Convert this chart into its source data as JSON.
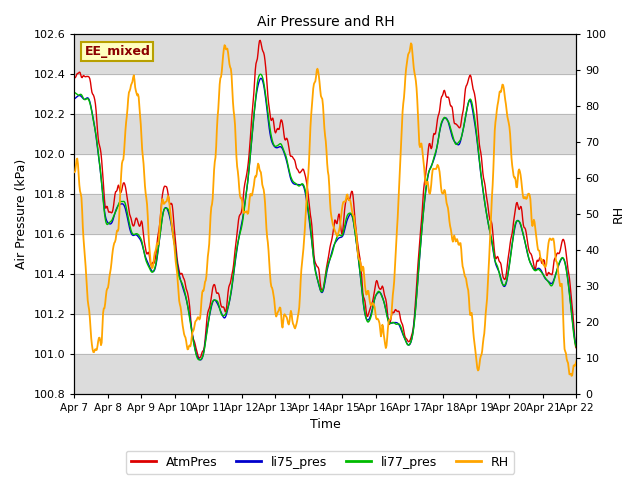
{
  "title": "Air Pressure and RH",
  "xlabel": "Time",
  "ylabel_left": "Air Pressure (kPa)",
  "ylabel_right": "RH",
  "ylim_left": [
    100.8,
    102.6
  ],
  "ylim_right": [
    0,
    100
  ],
  "yticks_left": [
    100.8,
    101.0,
    101.2,
    101.4,
    101.6,
    101.8,
    102.0,
    102.2,
    102.4,
    102.6
  ],
  "yticks_right": [
    0,
    10,
    20,
    30,
    40,
    50,
    60,
    70,
    80,
    90,
    100
  ],
  "xtick_labels": [
    "Apr 7",
    "Apr 8",
    "Apr 9",
    "Apr 10",
    "Apr 11",
    "Apr 12",
    "Apr 13",
    "Apr 14",
    "Apr 15",
    "Apr 16",
    "Apr 17",
    "Apr 18",
    "Apr 19",
    "Apr 20",
    "Apr 21",
    "Apr 22"
  ],
  "annotation_text": "EE_mixed",
  "annotation_color": "#8B0000",
  "annotation_bg": "#FFFFC0",
  "annotation_border": "#B8A000",
  "colors": {
    "AtmPres": "#DD0000",
    "li75_pres": "#0000CC",
    "li77_pres": "#00BB00",
    "RH": "#FFA500"
  },
  "linewidths": {
    "AtmPres": 1.0,
    "li75_pres": 1.0,
    "li77_pres": 1.0,
    "RH": 1.3
  },
  "band_color": "#DCDCDC",
  "n_points": 720,
  "seed": 7
}
